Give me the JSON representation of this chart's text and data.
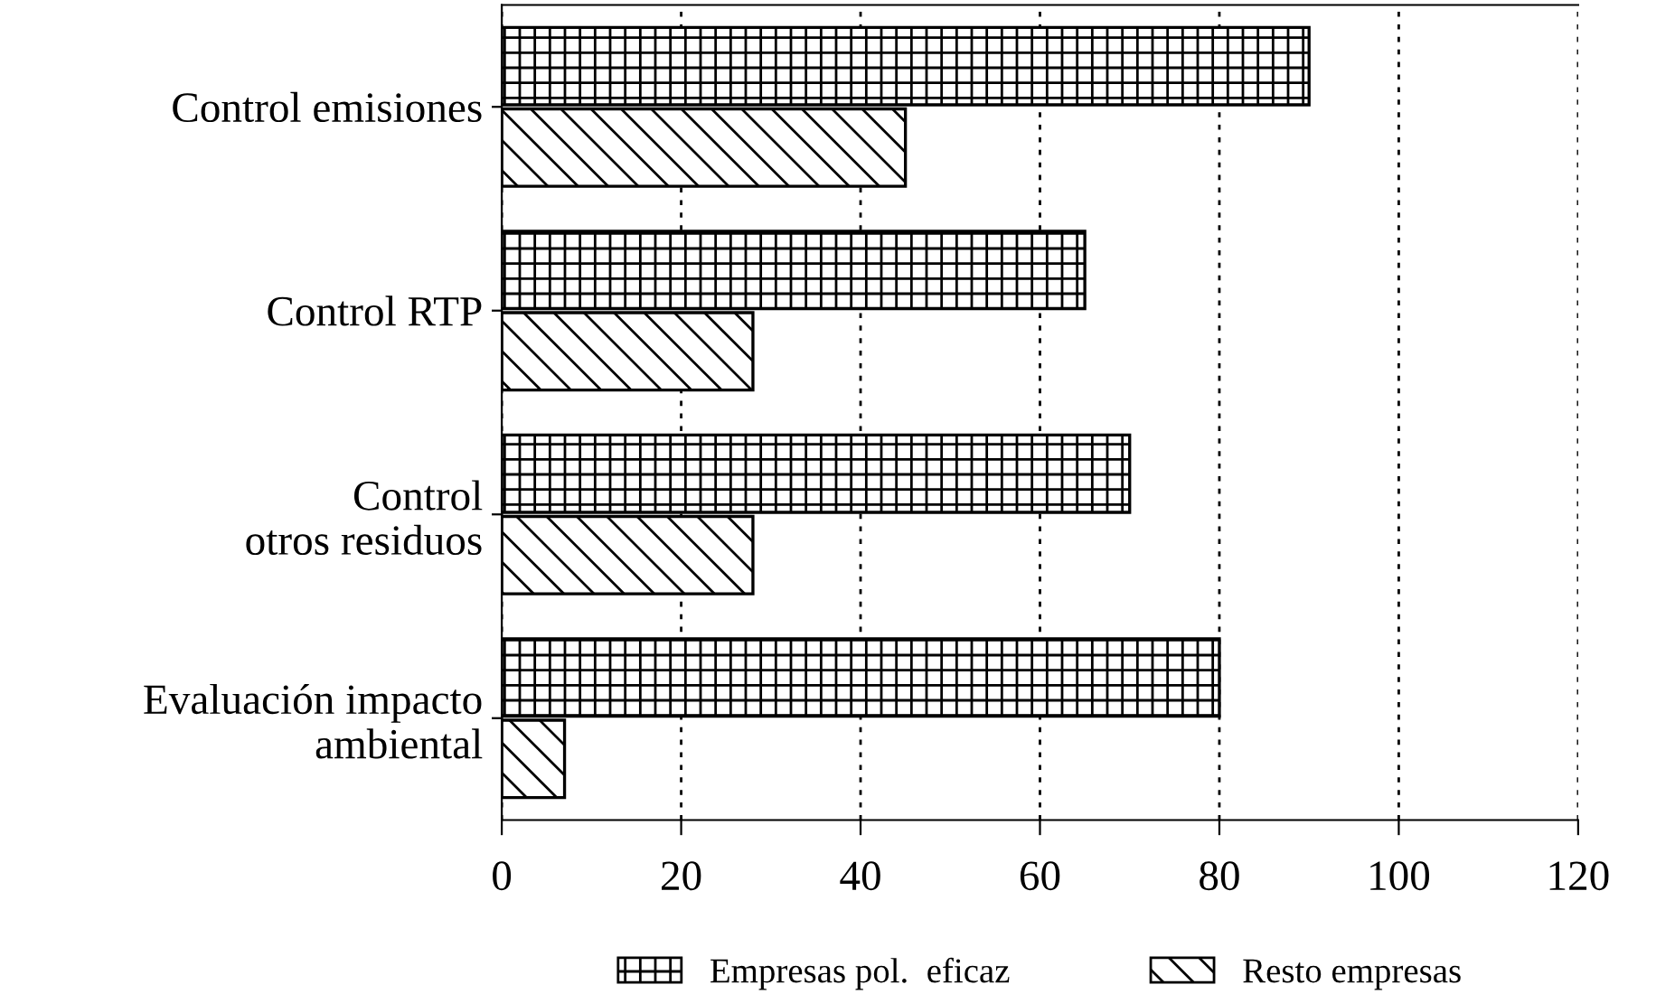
{
  "chart_data": {
    "type": "bar",
    "orientation": "horizontal",
    "categories": [
      "Control emisiones",
      "Control RTP",
      "Control\notros residuos",
      "Evaluación impacto\nambiental"
    ],
    "series": [
      {
        "name": "Empresas pol.  eficaz",
        "color": "#000000",
        "values": [
          90,
          65,
          70,
          80
        ]
      },
      {
        "name": "Resto empresas",
        "color": "#000000",
        "values": [
          45,
          28,
          28,
          7
        ]
      }
    ],
    "xlim": [
      0,
      120
    ],
    "xticks": [
      0,
      20,
      40,
      60,
      80,
      100,
      120
    ],
    "grid": "x",
    "legend": "bottom"
  }
}
